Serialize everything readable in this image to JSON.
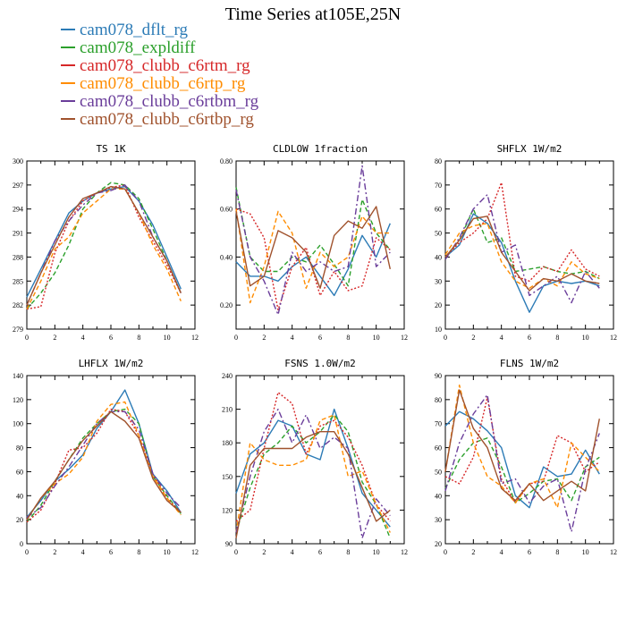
{
  "figure": {
    "title": "Time Series at105E,25N"
  },
  "legend": [
    {
      "name": "cam078_dflt_rg",
      "color": "#2c7bb6",
      "dash": "solid"
    },
    {
      "name": "cam078_expldiff",
      "color": "#2ca02c",
      "dash": "dashed"
    },
    {
      "name": "cam078_clubb_c6rtm_rg",
      "color": "#d62728",
      "dash": "dotted"
    },
    {
      "name": "cam078_clubb_c6rtp_rg",
      "color": "#ff8c00",
      "dash": "dashed"
    },
    {
      "name": "cam078_clubb_c6rtbm_rg",
      "color": "#6a3d9a",
      "dash": "dashdot"
    },
    {
      "name": "cam078_clubb_c6rtbp_rg",
      "color": "#a0522d",
      "dash": "solid"
    }
  ],
  "chart_data": [
    {
      "type": "line",
      "title": "TS   1K",
      "x": [
        0,
        1,
        2,
        3,
        4,
        5,
        6,
        7,
        8,
        9,
        10,
        11
      ],
      "xlim": [
        0,
        12
      ],
      "xticks": [
        "0",
        "2",
        "4",
        "6",
        "8",
        "10",
        "12"
      ],
      "ylim": [
        279,
        300
      ],
      "yticks": [
        "279",
        "282",
        "285",
        "288",
        "291",
        "294",
        "297",
        "300"
      ],
      "series": [
        {
          "name": "cam078_dflt_rg",
          "values": [
            283,
            286.5,
            290,
            293.5,
            295,
            296,
            296.5,
            296.8,
            295,
            292,
            288,
            284
          ]
        },
        {
          "name": "cam078_expldiff",
          "values": [
            281.5,
            283.5,
            286,
            289.5,
            294,
            296,
            297.3,
            297,
            295.3,
            291.5,
            287.5,
            283.5
          ]
        },
        {
          "name": "cam078_clubb_c6rtm_rg",
          "values": [
            281.5,
            281.8,
            288.5,
            292.5,
            295,
            296,
            296.7,
            297,
            293,
            290,
            287,
            283.5
          ]
        },
        {
          "name": "cam078_clubb_c6rtp_rg",
          "values": [
            281.5,
            285,
            289,
            290.5,
            293.5,
            295,
            296.5,
            296.5,
            293.5,
            289.5,
            286.5,
            282.5
          ]
        },
        {
          "name": "cam078_clubb_c6rtbm_rg",
          "values": [
            282,
            286,
            290,
            292.5,
            294.5,
            296,
            296.3,
            297,
            295,
            290.5,
            287.5,
            283.5
          ]
        },
        {
          "name": "cam078_clubb_c6rtbp_rg",
          "values": [
            282,
            286,
            289.5,
            293,
            295.3,
            296,
            296.8,
            296.5,
            293.5,
            290.5,
            287.5,
            283.5
          ]
        }
      ]
    },
    {
      "type": "line",
      "title": "CLDLOW   1fraction",
      "x": [
        0,
        1,
        2,
        3,
        4,
        5,
        6,
        7,
        8,
        9,
        10,
        11
      ],
      "xlim": [
        0,
        12
      ],
      "xticks": [
        "0",
        "2",
        "4",
        "6",
        "8",
        "10",
        "12"
      ],
      "ylim": [
        0.1,
        0.8
      ],
      "yticks": [
        "0.20",
        "0.40",
        "0.60",
        "0.80"
      ],
      "series": [
        {
          "name": "cam078_dflt_rg",
          "values": [
            0.38,
            0.32,
            0.32,
            0.3,
            0.36,
            0.4,
            0.32,
            0.24,
            0.35,
            0.49,
            0.4,
            0.54
          ]
        },
        {
          "name": "cam078_expldiff",
          "values": [
            0.69,
            0.4,
            0.34,
            0.34,
            0.4,
            0.38,
            0.45,
            0.37,
            0.28,
            0.64,
            0.5,
            0.43
          ]
        },
        {
          "name": "cam078_clubb_c6rtm_rg",
          "values": [
            0.6,
            0.58,
            0.48,
            0.18,
            0.36,
            0.44,
            0.24,
            0.34,
            0.26,
            0.28,
            0.48,
            0.43
          ]
        },
        {
          "name": "cam078_clubb_c6rtp_rg",
          "values": [
            0.6,
            0.21,
            0.36,
            0.59,
            0.5,
            0.27,
            0.42,
            0.36,
            0.4,
            0.57,
            0.5,
            0.5
          ]
        },
        {
          "name": "cam078_clubb_c6rtbm_rg",
          "values": [
            0.68,
            0.4,
            0.3,
            0.16,
            0.42,
            0.34,
            0.38,
            0.34,
            0.36,
            0.78,
            0.36,
            0.42
          ]
        },
        {
          "name": "cam078_clubb_c6rtbp_rg",
          "values": [
            0.59,
            0.28,
            0.32,
            0.51,
            0.48,
            0.42,
            0.27,
            0.49,
            0.55,
            0.52,
            0.61,
            0.35
          ]
        }
      ]
    },
    {
      "type": "line",
      "title": "SHFLX   1W/m2",
      "x": [
        0,
        1,
        2,
        3,
        4,
        5,
        6,
        7,
        8,
        9,
        10,
        11
      ],
      "xlim": [
        0,
        12
      ],
      "xticks": [
        "0",
        "2",
        "4",
        "6",
        "8",
        "10",
        "12"
      ],
      "ylim": [
        10,
        80
      ],
      "yticks": [
        "10",
        "20",
        "30",
        "40",
        "50",
        "60",
        "70",
        "80"
      ],
      "series": [
        {
          "name": "cam078_dflt_rg",
          "values": [
            40,
            45,
            58,
            54,
            46,
            30,
            17,
            28,
            30,
            29,
            30,
            28
          ]
        },
        {
          "name": "cam078_expldiff",
          "values": [
            40,
            47,
            60,
            46,
            48,
            34,
            35,
            36,
            34,
            33,
            34,
            31
          ]
        },
        {
          "name": "cam078_clubb_c6rtm_rg",
          "values": [
            40,
            46,
            50,
            56,
            71,
            32,
            30,
            36,
            34,
            43,
            35,
            32
          ]
        },
        {
          "name": "cam078_clubb_c6rtp_rg",
          "values": [
            41,
            50,
            53,
            54,
            38,
            30,
            27,
            31,
            28,
            38,
            33,
            31
          ]
        },
        {
          "name": "cam078_clubb_c6rtbm_rg",
          "values": [
            39,
            48,
            60,
            66,
            42,
            45,
            24,
            28,
            32,
            21,
            34,
            27
          ]
        },
        {
          "name": "cam078_clubb_c6rtbp_rg",
          "values": [
            40,
            47,
            56,
            57,
            42,
            34,
            26,
            31,
            30,
            33,
            30,
            29
          ]
        }
      ]
    },
    {
      "type": "line",
      "title": "LHFLX   1W/m2",
      "x": [
        0,
        1,
        2,
        3,
        4,
        5,
        6,
        7,
        8,
        9,
        10,
        11
      ],
      "xlim": [
        0,
        12
      ],
      "xticks": [
        "0",
        "2",
        "4",
        "6",
        "8",
        "10",
        "12"
      ],
      "ylim": [
        0,
        140
      ],
      "yticks": [
        "0",
        "20",
        "40",
        "60",
        "80",
        "100",
        "120",
        "140"
      ],
      "series": [
        {
          "name": "cam078_dflt_rg",
          "values": [
            22,
            36,
            52,
            62,
            74,
            96,
            110,
            128,
            100,
            58,
            44,
            26
          ]
        },
        {
          "name": "cam078_expldiff",
          "values": [
            18,
            32,
            52,
            70,
            88,
            100,
            110,
            112,
            100,
            56,
            40,
            25
          ]
        },
        {
          "name": "cam078_clubb_c6rtm_rg",
          "values": [
            18,
            28,
            50,
            78,
            80,
            92,
            112,
            110,
            90,
            58,
            38,
            26
          ]
        },
        {
          "name": "cam078_clubb_c6rtp_rg",
          "values": [
            20,
            38,
            50,
            58,
            72,
            102,
            116,
            118,
            90,
            56,
            38,
            24
          ]
        },
        {
          "name": "cam078_clubb_c6rtbm_rg",
          "values": [
            22,
            30,
            48,
            64,
            82,
            100,
            110,
            110,
            95,
            58,
            42,
            30
          ]
        },
        {
          "name": "cam078_clubb_c6rtbp_rg",
          "values": [
            20,
            38,
            52,
            70,
            86,
            98,
            110,
            102,
            88,
            54,
            36,
            26
          ]
        }
      ]
    },
    {
      "type": "line",
      "title": "FSNS   1.0W/m2",
      "x": [
        0,
        1,
        2,
        3,
        4,
        5,
        6,
        7,
        8,
        9,
        10,
        11
      ],
      "xlim": [
        0,
        12
      ],
      "xticks": [
        "0",
        "2",
        "4",
        "6",
        "8",
        "10",
        "12"
      ],
      "ylim": [
        90,
        240
      ],
      "yticks": [
        "90",
        "120",
        "150",
        "180",
        "210",
        "240"
      ],
      "series": [
        {
          "name": "cam078_dflt_rg",
          "values": [
            135,
            170,
            180,
            200,
            195,
            170,
            165,
            210,
            175,
            135,
            120,
            105
          ]
        },
        {
          "name": "cam078_expldiff",
          "values": [
            100,
            140,
            170,
            180,
            195,
            180,
            190,
            205,
            190,
            145,
            125,
            95
          ]
        },
        {
          "name": "cam078_clubb_c6rtm_rg",
          "values": [
            110,
            120,
            175,
            225,
            215,
            170,
            195,
            200,
            185,
            160,
            125,
            110
          ]
        },
        {
          "name": "cam078_clubb_c6rtp_rg",
          "values": [
            100,
            180,
            165,
            160,
            160,
            165,
            200,
            205,
            150,
            155,
            125,
            100
          ]
        },
        {
          "name": "cam078_clubb_c6rtbm_rg",
          "values": [
            100,
            150,
            190,
            210,
            180,
            205,
            175,
            185,
            175,
            95,
            130,
            115
          ]
        },
        {
          "name": "cam078_clubb_c6rtbp_rg",
          "values": [
            95,
            160,
            175,
            175,
            175,
            185,
            190,
            190,
            170,
            140,
            110,
            120
          ]
        }
      ]
    },
    {
      "type": "line",
      "title": "FLNS   1W/m2",
      "x": [
        0,
        1,
        2,
        3,
        4,
        5,
        6,
        7,
        8,
        9,
        10,
        11
      ],
      "xlim": [
        0,
        12
      ],
      "xticks": [
        "0",
        "2",
        "4",
        "6",
        "8",
        "10",
        "12"
      ],
      "ylim": [
        20,
        90
      ],
      "yticks": [
        "20",
        "30",
        "40",
        "50",
        "60",
        "70",
        "80",
        "90"
      ],
      "series": [
        {
          "name": "cam078_dflt_rg",
          "values": [
            69,
            75,
            72,
            67,
            60,
            40,
            35,
            52,
            48,
            49,
            59,
            49
          ]
        },
        {
          "name": "cam078_expldiff",
          "values": [
            43,
            55,
            62,
            64,
            52,
            37,
            41,
            46,
            47,
            38,
            52,
            56
          ]
        },
        {
          "name": "cam078_clubb_c6rtm_rg",
          "values": [
            48,
            45,
            56,
            81,
            47,
            37,
            45,
            46,
            65,
            62,
            50,
            54
          ]
        },
        {
          "name": "cam078_clubb_c6rtp_rg",
          "values": [
            50,
            86,
            62,
            48,
            44,
            37,
            45,
            47,
            35,
            62,
            56,
            50
          ]
        },
        {
          "name": "cam078_clubb_c6rtbm_rg",
          "values": [
            42,
            62,
            74,
            82,
            45,
            47,
            37,
            44,
            47,
            25,
            51,
            66
          ]
        },
        {
          "name": "cam078_clubb_c6rtbp_rg",
          "values": [
            50,
            84,
            68,
            60,
            43,
            38,
            45,
            38,
            42,
            46,
            42,
            72
          ]
        }
      ]
    }
  ]
}
